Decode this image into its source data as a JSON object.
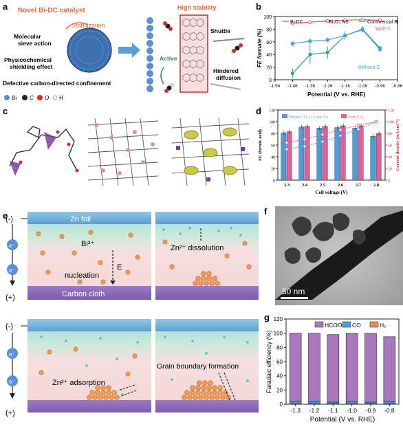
{
  "panels": {
    "a": {
      "letter": "a",
      "title": "Novel Bi-DC catalyst",
      "stabilization": "Stabilization",
      "high_stability": "High stability",
      "molecular": "Molecular",
      "sieve_action": "sieve action",
      "physicochemical": "Physicochemical",
      "shielding_effect": "shielding effect",
      "defective": "Defective carbon-directed confinement",
      "active": "Active",
      "shuttle": "Shuttle",
      "hindered": "Hindered",
      "diffusion": "diffusion",
      "legend": [
        {
          "sym": "Bi",
          "color": "#5b8fd6"
        },
        {
          "sym": "C",
          "color": "#222222"
        },
        {
          "sym": "O",
          "color": "#d62a2a"
        },
        {
          "sym": "H",
          "color": "#f2f2f2"
        }
      ]
    },
    "b": {
      "letter": "b"
    },
    "c": {
      "letter": "c"
    },
    "d": {
      "letter": "d"
    },
    "e": {
      "letter": "e",
      "zn_foil": "Zn foil",
      "carbon_cloth": "Carbon cloth",
      "minus": "(-)",
      "plus": "(+)",
      "electron": "e⁻",
      "bi3": "Bi³⁺",
      "E": "E",
      "nucleation": "nucleation",
      "zn_dissolution": "Zn²⁺ dissolution",
      "zn_adsorption": "Zn²⁺ adsorption",
      "grain_boundary": "Grain boundary formation"
    },
    "f": {
      "letter": "f",
      "scale": "50 nm"
    },
    "g": {
      "letter": "g"
    }
  },
  "chart_data": [
    {
      "id": "b",
      "type": "line",
      "xlabel": "Potential (V vs. RHE)",
      "ylabel": "FE formate (%)",
      "x": [
        -1.46,
        -1.36,
        -1.26,
        -1.16,
        -1.06,
        -0.96
      ],
      "xticks": [
        "-1.56",
        "-1.46",
        "-1.36",
        "-1.26",
        "-1.16",
        "-1.06",
        "-0.96",
        "-0.86"
      ],
      "xlim": [
        -1.56,
        -0.86
      ],
      "ylim": [
        0,
        100
      ],
      "yticks": [
        0,
        20,
        40,
        60,
        80,
        100
      ],
      "series": [
        {
          "name": "Bi-DC",
          "color": "#e8605c",
          "values": [
            89,
            91,
            93,
            94,
            95,
            94
          ],
          "errors": [
            2,
            2,
            2,
            2,
            2,
            2
          ]
        },
        {
          "name": "Bi₂O₂ NS",
          "color": "#2a9d8f",
          "values": [
            10,
            40,
            43,
            70,
            80,
            50
          ],
          "errors": [
            8,
            15,
            10,
            7,
            5,
            4
          ]
        },
        {
          "name": "Commercial Bi",
          "color": "#4aa0d8",
          "values": [
            57,
            61,
            63,
            70,
            79,
            48
          ],
          "errors": [
            4,
            4,
            4,
            5,
            4,
            4
          ]
        }
      ],
      "annotations": {
        "with_c": "With C",
        "without_c": "Without C"
      }
    },
    {
      "id": "d",
      "type": "bar",
      "xlabel": "Cell voltage (V)",
      "ylabel_left": "FE (formic acid)",
      "ylabel_right": "Current density (mA cm⁻²)",
      "categories": [
        "2.3",
        "2.4",
        "2.5",
        "2.6",
        "2.7",
        "2.8"
      ],
      "ylim_left": [
        0,
        120
      ],
      "yticks_left": [
        0,
        10,
        20,
        30,
        40,
        50,
        60,
        70,
        80,
        90,
        100,
        110,
        120
      ],
      "ylim_right": [
        0,
        120
      ],
      "yticks_right": [
        0,
        20,
        40,
        60,
        80,
        100,
        120
      ],
      "series": [
        {
          "name": "Dilute CO₂ (15 vol.%)",
          "color": "#4a9fd8",
          "values": [
            81,
            91,
            89,
            90,
            89,
            75
          ]
        },
        {
          "name": "Pure CO₂",
          "color": "#e0609a",
          "values": [
            83,
            92,
            92,
            93,
            93,
            80
          ]
        }
      ],
      "lines": [
        {
          "name": "Dilute CO₂ current",
          "color": "#4a9fd8",
          "values": [
            53,
            58,
            66,
            76,
            87,
            100
          ]
        },
        {
          "name": "Pure CO₂ current",
          "color": "#e0609a",
          "values": [
            64,
            70,
            78,
            86,
            94,
            100
          ]
        }
      ]
    },
    {
      "id": "g",
      "type": "bar",
      "xlabel": "Potential (V vs. RHE)",
      "ylabel": "Faradaic efficiency (%)",
      "categories": [
        "-1.3",
        "-1.2",
        "-1.1",
        "-1.0",
        "-0.9",
        "-0.8"
      ],
      "ylim": [
        0,
        120
      ],
      "yticks": [
        0,
        20,
        40,
        60,
        80,
        100,
        120
      ],
      "series": [
        {
          "name": "HCOO⁻",
          "color": "#a877bd",
          "values": [
            96,
            96,
            95,
            96,
            97,
            91
          ]
        },
        {
          "name": "CO",
          "color": "#4a9fd8",
          "values": [
            3,
            3,
            2,
            3,
            2,
            3
          ]
        },
        {
          "name": "H₂",
          "color": "#f08a55",
          "values": [
            1,
            1,
            1,
            1,
            1,
            1
          ]
        }
      ]
    }
  ]
}
